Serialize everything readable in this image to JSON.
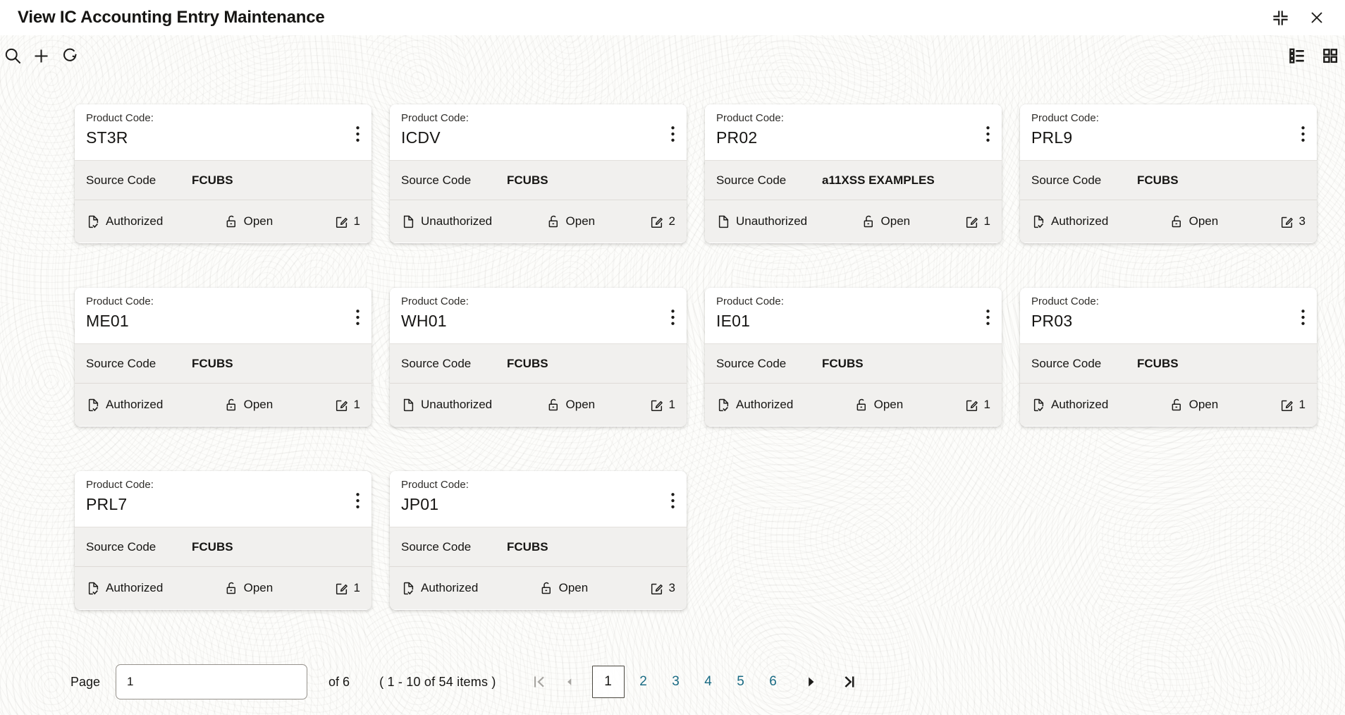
{
  "window": {
    "title": "View IC Accounting Entry Maintenance",
    "icons": [
      "collapse-icon",
      "close-icon"
    ]
  },
  "toolbar": {
    "left_icons": [
      "search-icon",
      "add-icon",
      "refresh-icon"
    ],
    "right_icons": [
      "list-view-icon",
      "grid-view-icon"
    ]
  },
  "labels": {
    "product_code": "Product Code:",
    "source_code": "Source Code"
  },
  "cards": [
    {
      "code": "ST3R",
      "source": "FCUBS",
      "auth_status": "Authorized",
      "record_status": "Open",
      "mod_count": "1"
    },
    {
      "code": "ICDV",
      "source": "FCUBS",
      "auth_status": "Unauthorized",
      "record_status": "Open",
      "mod_count": "2"
    },
    {
      "code": "PR02",
      "source": "a11XSS EXAMPLES",
      "auth_status": "Unauthorized",
      "record_status": "Open",
      "mod_count": "1"
    },
    {
      "code": "PRL9",
      "source": "FCUBS",
      "auth_status": "Authorized",
      "record_status": "Open",
      "mod_count": "3"
    },
    {
      "code": "ME01",
      "source": "FCUBS",
      "auth_status": "Authorized",
      "record_status": "Open",
      "mod_count": "1"
    },
    {
      "code": "WH01",
      "source": "FCUBS",
      "auth_status": "Unauthorized",
      "record_status": "Open",
      "mod_count": "1"
    },
    {
      "code": "IE01",
      "source": "FCUBS",
      "auth_status": "Authorized",
      "record_status": "Open",
      "mod_count": "1"
    },
    {
      "code": "PR03",
      "source": "FCUBS",
      "auth_status": "Authorized",
      "record_status": "Open",
      "mod_count": "1"
    },
    {
      "code": "PRL7",
      "source": "FCUBS",
      "auth_status": "Authorized",
      "record_status": "Open",
      "mod_count": "1"
    },
    {
      "code": "JP01",
      "source": "FCUBS",
      "auth_status": "Authorized",
      "record_status": "Open",
      "mod_count": "3"
    }
  ],
  "pagination": {
    "page_label": "Page",
    "page_value": "1",
    "of_text": "of 6",
    "items_text": "( 1 - 10 of 54 items )",
    "pages": [
      "1",
      "2",
      "3",
      "4",
      "5",
      "6"
    ],
    "current_page": "1"
  },
  "colors": {
    "text": "#161513",
    "link_teal": "#1a6b84",
    "card_section_bg": "#f1f0ee"
  }
}
